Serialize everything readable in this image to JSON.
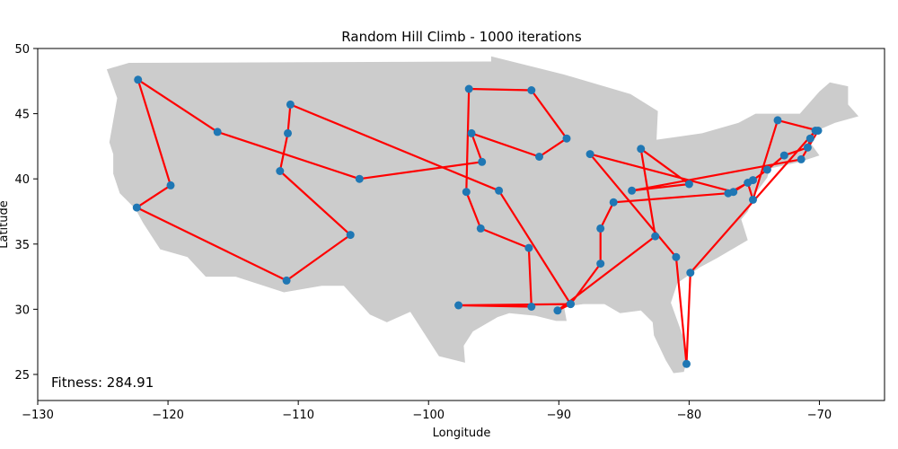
{
  "chart_data": {
    "type": "scatter",
    "title": "Random Hill Climb - 1000 iterations",
    "xlabel": "Longitude",
    "ylabel": "Latitude",
    "xlim": [
      -130,
      -65
    ],
    "ylim": [
      23,
      50
    ],
    "xticks": [
      -130,
      -120,
      -110,
      -100,
      -90,
      -80,
      -70
    ],
    "yticks": [
      25,
      30,
      35,
      40,
      45,
      50
    ],
    "xtick_labels": [
      "−130",
      "−120",
      "−110",
      "−100",
      "−90",
      "−80",
      "−70"
    ],
    "ytick_labels": [
      "25",
      "30",
      "35",
      "40",
      "45",
      "50"
    ],
    "grid": false,
    "annotation": "Fitness: 284.91",
    "colors": {
      "point": "#1f77b4",
      "route": "#ff0000",
      "land": "#cccccc"
    },
    "route": [
      [
        -122.3,
        47.6
      ],
      [
        -119.8,
        39.5
      ],
      [
        -122.4,
        37.8
      ],
      [
        -110.9,
        32.2
      ],
      [
        -106.0,
        35.7
      ],
      [
        -111.4,
        40.6
      ],
      [
        -110.8,
        43.5
      ],
      [
        -110.6,
        45.7
      ],
      [
        -94.6,
        39.1
      ],
      [
        -89.1,
        30.4
      ],
      [
        -97.7,
        30.3
      ],
      [
        -92.1,
        30.2
      ],
      [
        -92.3,
        34.7
      ],
      [
        -96.0,
        36.2
      ],
      [
        -97.1,
        39.0
      ],
      [
        -96.9,
        46.9
      ],
      [
        -92.1,
        46.8
      ],
      [
        -89.4,
        43.1
      ],
      [
        -91.5,
        41.7
      ],
      [
        -96.7,
        43.5
      ],
      [
        -95.9,
        41.3
      ],
      [
        -105.3,
        40.0
      ],
      [
        -116.2,
        43.6
      ],
      [
        -122.3,
        47.6
      ]
    ],
    "route2": [
      [
        -90.1,
        29.9
      ],
      [
        -89.1,
        30.4
      ],
      [
        -86.8,
        33.5
      ],
      [
        -86.8,
        36.2
      ],
      [
        -85.8,
        38.2
      ],
      [
        -77.0,
        38.9
      ],
      [
        -75.1,
        39.9
      ],
      [
        -74.0,
        40.7
      ],
      [
        -72.7,
        41.8
      ],
      [
        -70.9,
        42.4
      ],
      [
        -70.7,
        43.1
      ],
      [
        -70.3,
        43.7
      ],
      [
        -79.9,
        32.8
      ],
      [
        -80.2,
        25.8
      ],
      [
        -81.0,
        34.0
      ],
      [
        -87.6,
        41.9
      ],
      [
        -76.6,
        39.0
      ],
      [
        -75.5,
        39.7
      ],
      [
        -75.1,
        38.4
      ],
      [
        -73.2,
        44.5
      ],
      [
        -70.1,
        43.7
      ],
      [
        -71.4,
        41.5
      ],
      [
        -84.4,
        39.1
      ],
      [
        -80.0,
        39.6
      ],
      [
        -83.7,
        42.3
      ],
      [
        -82.6,
        35.6
      ],
      [
        -90.1,
        29.9
      ]
    ],
    "usa_outline": [
      [
        -124.7,
        48.4
      ],
      [
        -123.0,
        48.9
      ],
      [
        -95.2,
        49.0
      ],
      [
        -95.2,
        49.4
      ],
      [
        -89.6,
        48.0
      ],
      [
        -84.5,
        46.5
      ],
      [
        -82.4,
        45.2
      ],
      [
        -82.5,
        43.0
      ],
      [
        -79.0,
        43.5
      ],
      [
        -76.2,
        44.3
      ],
      [
        -74.9,
        45.0
      ],
      [
        -71.5,
        45.0
      ],
      [
        -70.0,
        46.7
      ],
      [
        -69.2,
        47.4
      ],
      [
        -67.8,
        47.1
      ],
      [
        -67.8,
        45.7
      ],
      [
        -67.0,
        44.8
      ],
      [
        -68.8,
        44.3
      ],
      [
        -70.2,
        43.7
      ],
      [
        -70.8,
        42.9
      ],
      [
        -70.0,
        41.8
      ],
      [
        -71.5,
        41.3
      ],
      [
        -73.8,
        40.8
      ],
      [
        -74.0,
        40.1
      ],
      [
        -74.9,
        38.9
      ],
      [
        -75.5,
        37.5
      ],
      [
        -76.0,
        36.9
      ],
      [
        -75.5,
        35.3
      ],
      [
        -77.9,
        33.9
      ],
      [
        -79.2,
        33.2
      ],
      [
        -80.9,
        32.0
      ],
      [
        -81.4,
        30.5
      ],
      [
        -80.5,
        28.0
      ],
      [
        -80.1,
        26.4
      ],
      [
        -80.4,
        25.2
      ],
      [
        -81.2,
        25.1
      ],
      [
        -81.8,
        26.1
      ],
      [
        -82.7,
        28.0
      ],
      [
        -82.8,
        29.0
      ],
      [
        -83.7,
        29.9
      ],
      [
        -85.3,
        29.7
      ],
      [
        -86.5,
        30.4
      ],
      [
        -88.1,
        30.4
      ],
      [
        -89.6,
        30.2
      ],
      [
        -89.4,
        29.1
      ],
      [
        -90.2,
        29.1
      ],
      [
        -91.8,
        29.5
      ],
      [
        -93.8,
        29.7
      ],
      [
        -94.7,
        29.4
      ],
      [
        -96.6,
        28.3
      ],
      [
        -97.3,
        27.2
      ],
      [
        -97.2,
        25.9
      ],
      [
        -99.2,
        26.4
      ],
      [
        -100.3,
        28.1
      ],
      [
        -101.4,
        29.8
      ],
      [
        -103.2,
        29.0
      ],
      [
        -104.5,
        29.6
      ],
      [
        -106.5,
        31.8
      ],
      [
        -108.2,
        31.8
      ],
      [
        -111.1,
        31.3
      ],
      [
        -114.8,
        32.5
      ],
      [
        -117.1,
        32.5
      ],
      [
        -118.5,
        34.0
      ],
      [
        -120.6,
        34.6
      ],
      [
        -121.9,
        36.6
      ],
      [
        -122.5,
        37.7
      ],
      [
        -123.7,
        38.9
      ],
      [
        -124.2,
        40.4
      ],
      [
        -124.2,
        41.9
      ],
      [
        -124.5,
        42.8
      ],
      [
        -123.9,
        46.2
      ],
      [
        -124.7,
        48.4
      ]
    ]
  }
}
